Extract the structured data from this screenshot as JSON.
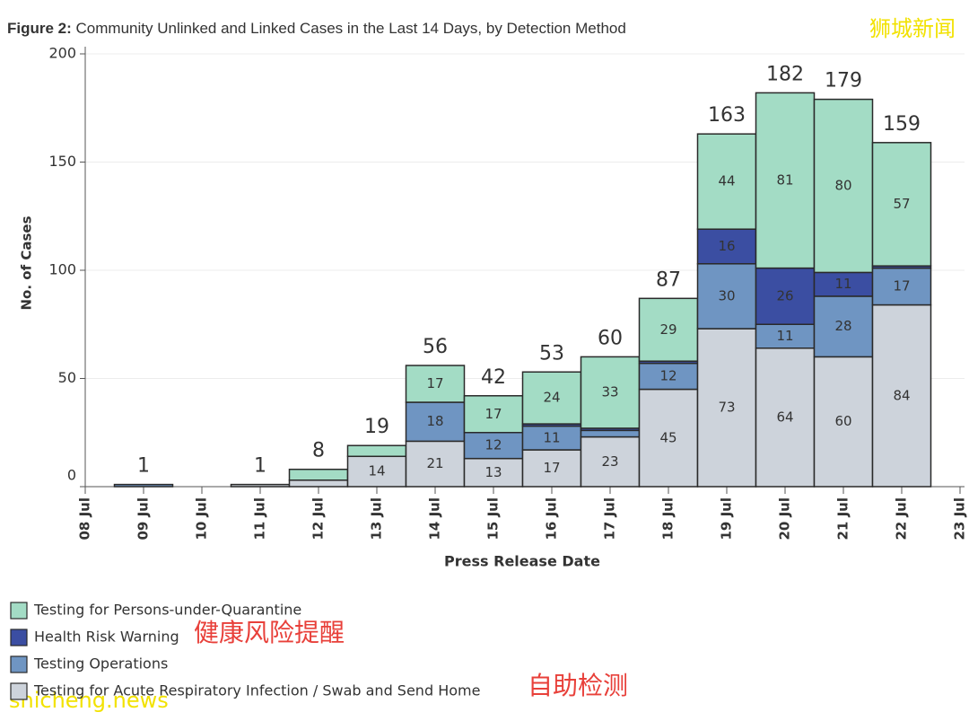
{
  "chart_data": {
    "type": "stacked-bar",
    "title_label": "Figure 2:",
    "title": "Community Unlinked and Linked Cases in the Last 14 Days, by Detection Method",
    "y_label": "No. of Cases",
    "x_label": "Press Release Date",
    "categories": [
      "08 Jul",
      "09 Jul",
      "10 Jul",
      "11 Jul",
      "12 Jul",
      "13 Jul",
      "14 Jul",
      "15 Jul",
      "16 Jul",
      "17 Jul",
      "18 Jul",
      "19 Jul",
      "20 Jul",
      "21 Jul",
      "22 Jul",
      "23 Jul"
    ],
    "series": [
      {
        "name": "Testing for Persons-under-Quarantine",
        "color": "#a3dcc5",
        "values": [
          null,
          null,
          null,
          null,
          5,
          5,
          17,
          17,
          24,
          33,
          29,
          44,
          81,
          80,
          57,
          null
        ]
      },
      {
        "name": "Health Risk Warning",
        "color": "#3b4ea2",
        "values": [
          null,
          null,
          null,
          null,
          null,
          null,
          null,
          null,
          1,
          1,
          1,
          16,
          26,
          11,
          1,
          null
        ]
      },
      {
        "name": "Testing Operations",
        "color": "#6f95c2",
        "values": [
          null,
          1,
          null,
          null,
          null,
          null,
          18,
          12,
          11,
          3,
          12,
          30,
          11,
          28,
          17,
          null
        ]
      },
      {
        "name": "Testing for Acute Respiratory Infection / Swab and Send Home",
        "color": "#cdd3db",
        "values": [
          null,
          null,
          null,
          1,
          3,
          14,
          21,
          13,
          17,
          23,
          45,
          73,
          64,
          60,
          84,
          null
        ]
      }
    ],
    "totals": [
      null,
      1,
      null,
      1,
      8,
      19,
      56,
      42,
      53,
      60,
      87,
      163,
      182,
      179,
      159,
      null
    ],
    "ylim": [
      0,
      200
    ],
    "yticks": [
      0,
      50,
      100,
      150,
      200
    ],
    "grid": true,
    "annotations": [
      "狮城新闻",
      "健康风险提醒",
      "自助检测",
      "shicheng.news"
    ]
  }
}
